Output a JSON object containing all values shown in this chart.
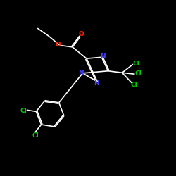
{
  "background": "#000000",
  "bond_color": "#ffffff",
  "bond_width": 1.2,
  "atom_colors": {
    "N": "#4444ff",
    "O": "#ff2200",
    "Cl": "#00cc00"
  },
  "font_size": 6.5
}
